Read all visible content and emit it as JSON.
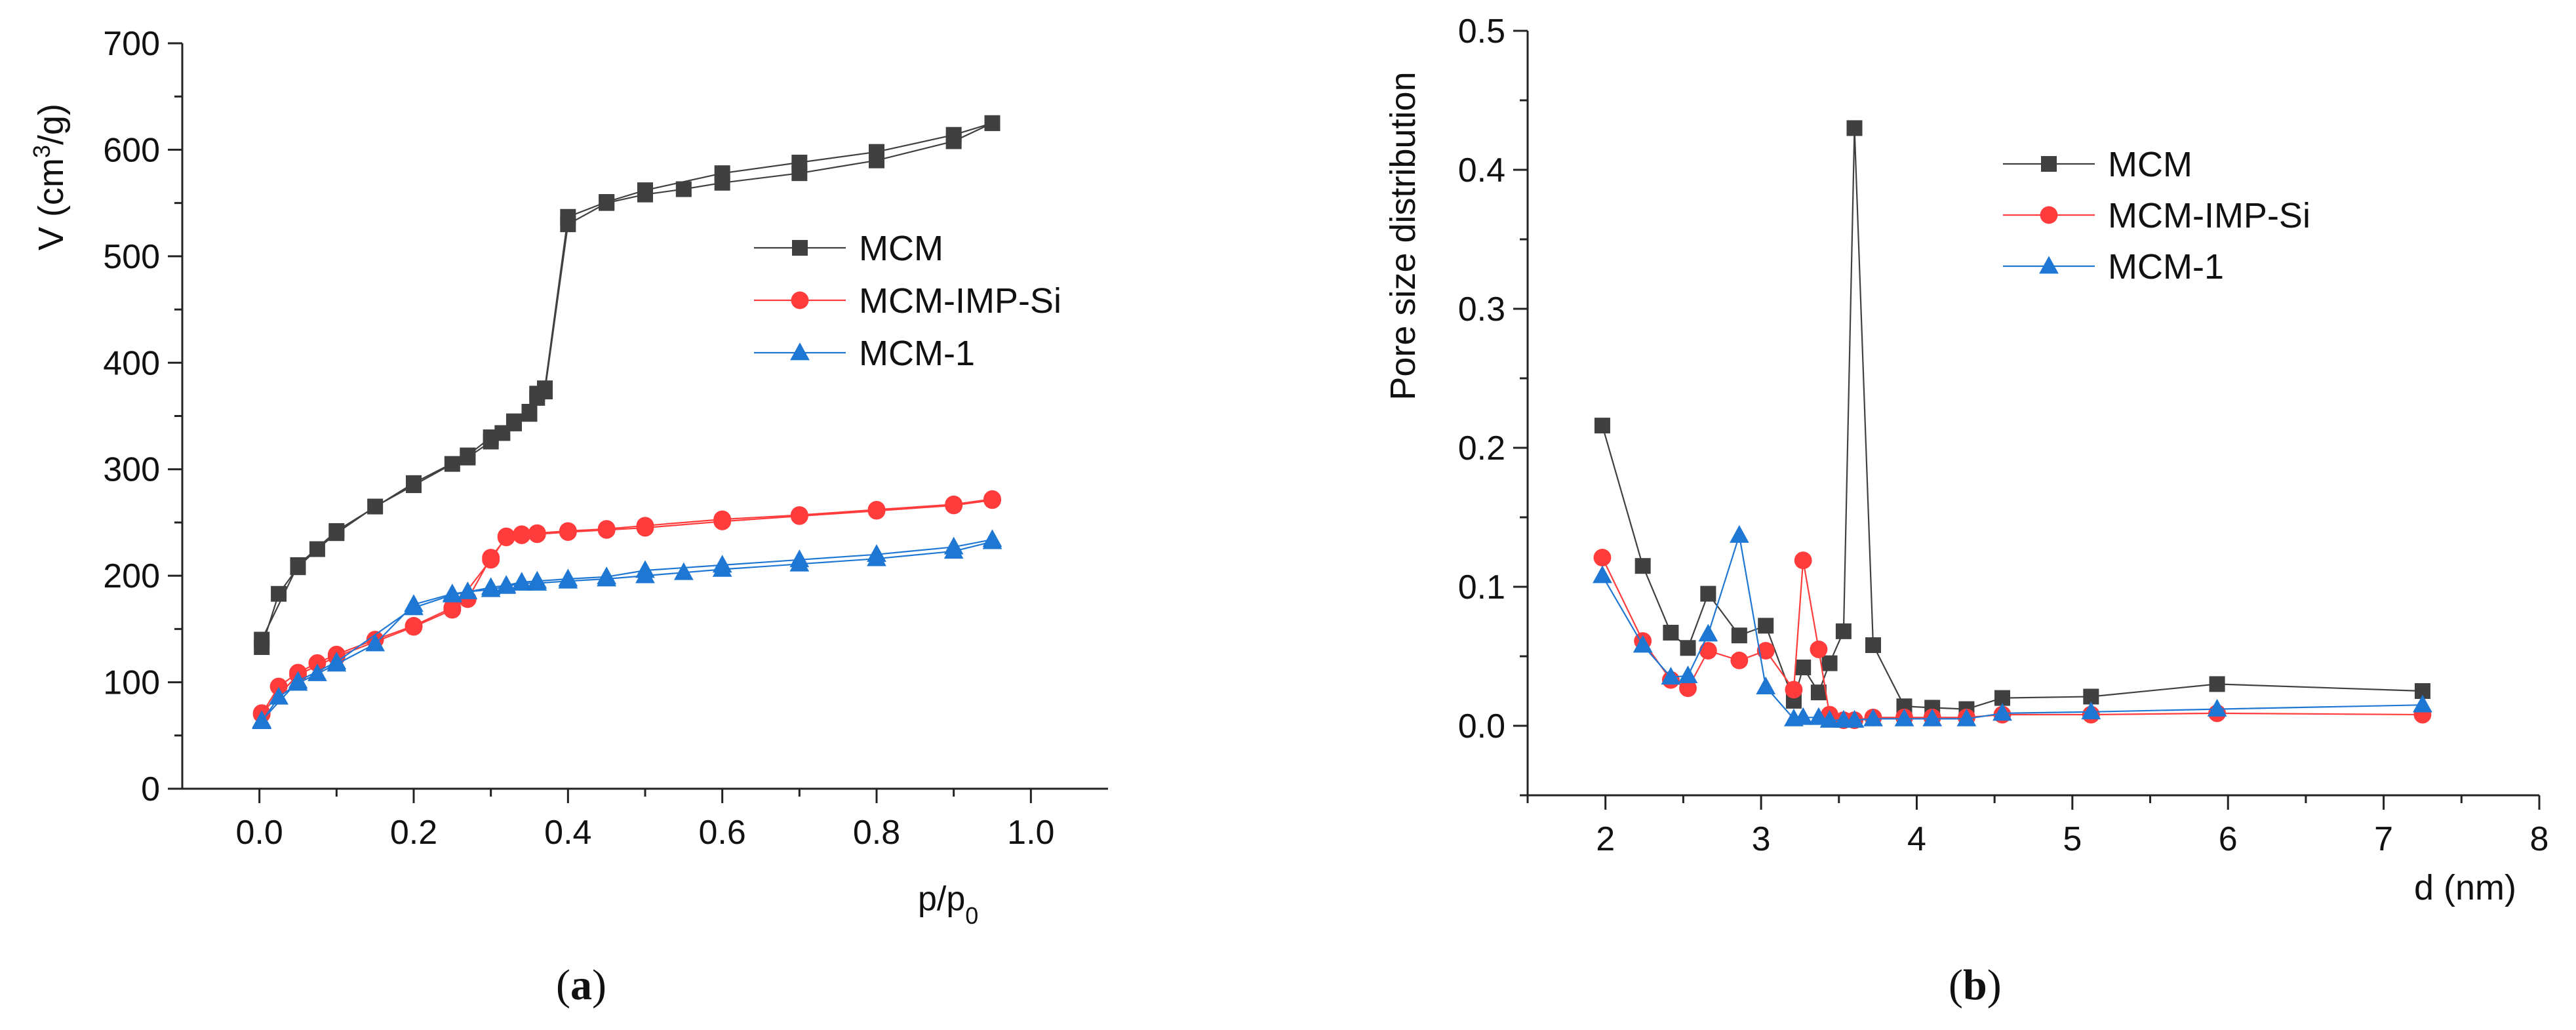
{
  "captions": {
    "a": {
      "open": "(",
      "letter": "a",
      "close": ")"
    },
    "b": {
      "open": "(",
      "letter": "b",
      "close": ")"
    }
  },
  "colors": {
    "MCM": "#404040",
    "MCM-IMP-Si": "#ff3b3b",
    "MCM-1": "#1f77d4"
  },
  "chart_data": [
    {
      "id": "a",
      "type": "line",
      "title": "",
      "xlabel": {
        "main": "p/p",
        "sub": "0"
      },
      "ylabel": {
        "prefix": "V (cm",
        "sup": "3",
        "suffix": "/g)"
      },
      "xlim": [
        -0.1,
        1.1
      ],
      "ylim": [
        0,
        700
      ],
      "xticks": [
        0.0,
        0.2,
        0.4,
        0.6,
        0.8,
        1.0
      ],
      "xtick_labels": [
        "0.0",
        "0.2",
        "0.4",
        "0.6",
        "0.8",
        "1.0"
      ],
      "yticks": [
        0,
        100,
        200,
        300,
        400,
        500,
        600,
        700
      ],
      "ytick_labels": [
        "0",
        "100",
        "200",
        "300",
        "400",
        "500",
        "600",
        "700"
      ],
      "grid": false,
      "legend": "middle-right",
      "series": [
        {
          "name": "MCM",
          "marker": "square",
          "color": "#404040",
          "branches": [
            {
              "x": [
                0.003,
                0.025,
                0.05,
                0.075,
                0.1,
                0.15,
                0.2,
                0.25,
                0.27,
                0.3,
                0.315,
                0.33,
                0.35,
                0.36,
                0.37,
                0.4,
                0.45,
                0.5,
                0.55,
                0.6,
                0.7,
                0.8,
                0.9,
                0.95
              ],
              "y": [
                133,
                183,
                208,
                225,
                240,
                265,
                285,
                305,
                311,
                326,
                334,
                343,
                352,
                367,
                373,
                530,
                550,
                558,
                563,
                569,
                578,
                590,
                608,
                625
              ]
            },
            {
              "x": [
                0.95,
                0.9,
                0.8,
                0.7,
                0.6,
                0.5,
                0.45,
                0.4,
                0.37,
                0.36,
                0.35,
                0.33,
                0.3,
                0.27,
                0.2,
                0.1,
                0.05,
                0.003
              ],
              "y": [
                625,
                614,
                598,
                588,
                578,
                562,
                551,
                537,
                376,
                371,
                354,
                345,
                330,
                313,
                287,
                242,
                210,
                140
              ]
            }
          ]
        },
        {
          "name": "MCM-IMP-Si",
          "marker": "circle",
          "color": "#ff3b3b",
          "branches": [
            {
              "x": [
                0.003,
                0.025,
                0.05,
                0.075,
                0.1,
                0.15,
                0.2,
                0.25,
                0.27,
                0.3,
                0.32,
                0.34,
                0.36,
                0.4,
                0.45,
                0.5,
                0.6,
                0.7,
                0.8,
                0.9,
                0.95
              ],
              "y": [
                70,
                96,
                109,
                118,
                126,
                140,
                153,
                170,
                178,
                217,
                236,
                238,
                239,
                241,
                243,
                245,
                251,
                256,
                261,
                266,
                271
              ]
            },
            {
              "x": [
                0.95,
                0.9,
                0.8,
                0.7,
                0.6,
                0.5,
                0.45,
                0.4,
                0.36,
                0.34,
                0.32,
                0.3,
                0.25,
                0.2,
                0.1,
                0.05,
                0.003
              ],
              "y": [
                272,
                267,
                262,
                257,
                253,
                247,
                244,
                242,
                240,
                239,
                237,
                215,
                168,
                152,
                124,
                107,
                71
              ]
            }
          ]
        },
        {
          "name": "MCM-1",
          "marker": "triangle",
          "color": "#1f77d4",
          "branches": [
            {
              "x": [
                0.003,
                0.025,
                0.05,
                0.075,
                0.1,
                0.15,
                0.2,
                0.25,
                0.27,
                0.3,
                0.32,
                0.34,
                0.36,
                0.4,
                0.45,
                0.5,
                0.55,
                0.6,
                0.7,
                0.8,
                0.9,
                0.95
              ],
              "y": [
                63,
                86,
                99,
                108,
                117,
                136,
                173,
                183,
                185,
                187,
                190,
                193,
                193,
                195,
                197,
                200,
                203,
                206,
                211,
                216,
                223,
                232
              ]
            },
            {
              "x": [
                0.95,
                0.9,
                0.8,
                0.7,
                0.6,
                0.5,
                0.45,
                0.4,
                0.36,
                0.34,
                0.32,
                0.3,
                0.25,
                0.2,
                0.1,
                0.05,
                0.003
              ],
              "y": [
                234,
                227,
                220,
                215,
                210,
                205,
                199,
                197,
                195,
                194,
                191,
                189,
                182,
                170,
                119,
                101,
                64
              ]
            }
          ]
        }
      ]
    },
    {
      "id": "b",
      "type": "line",
      "title": "",
      "xlabel": "d (nm)",
      "ylabel": "Pore size distribution",
      "xlim": [
        1.5,
        8
      ],
      "ylim": [
        -0.05,
        0.5
      ],
      "xticks": [
        2,
        3,
        4,
        5,
        6,
        7,
        8
      ],
      "xtick_labels": [
        "2",
        "3",
        "4",
        "5",
        "6",
        "7",
        "8"
      ],
      "yticks": [
        0.0,
        0.1,
        0.2,
        0.3,
        0.4,
        0.5
      ],
      "ytick_labels": [
        "0.0",
        "0.1",
        "0.2",
        "0.3",
        "0.4",
        "0.5"
      ],
      "grid": false,
      "legend": "top-right",
      "series": [
        {
          "name": "MCM",
          "marker": "square",
          "color": "#404040",
          "x": [
            1.98,
            2.24,
            2.42,
            2.53,
            2.66,
            2.86,
            3.03,
            3.21,
            3.27,
            3.37,
            3.44,
            3.53,
            3.6,
            3.72,
            3.92,
            4.1,
            4.32,
            4.55,
            5.12,
            5.93,
            7.25
          ],
          "y": [
            0.216,
            0.115,
            0.067,
            0.056,
            0.095,
            0.065,
            0.072,
            0.018,
            0.042,
            0.024,
            0.045,
            0.068,
            0.43,
            0.058,
            0.014,
            0.013,
            0.012,
            0.02,
            0.021,
            0.03,
            0.025
          ]
        },
        {
          "name": "MCM-IMP-Si",
          "marker": "circle",
          "color": "#ff3b3b",
          "x": [
            1.98,
            2.24,
            2.42,
            2.53,
            2.66,
            2.86,
            3.03,
            3.21,
            3.27,
            3.37,
            3.44,
            3.53,
            3.6,
            3.72,
            3.92,
            4.1,
            4.32,
            4.55,
            5.12,
            5.93,
            7.25
          ],
          "y": [
            0.121,
            0.061,
            0.033,
            0.027,
            0.054,
            0.047,
            0.054,
            0.026,
            0.119,
            0.055,
            0.008,
            0.004,
            0.004,
            0.006,
            0.006,
            0.006,
            0.006,
            0.008,
            0.008,
            0.009,
            0.008
          ]
        },
        {
          "name": "MCM-1",
          "marker": "triangle",
          "color": "#1f77d4",
          "x": [
            1.98,
            2.24,
            2.42,
            2.53,
            2.66,
            2.86,
            3.03,
            3.21,
            3.27,
            3.37,
            3.44,
            3.53,
            3.6,
            3.72,
            3.92,
            4.1,
            4.32,
            4.55,
            5.12,
            5.93,
            7.25
          ],
          "y": [
            0.108,
            0.058,
            0.035,
            0.036,
            0.066,
            0.137,
            0.028,
            0.005,
            0.006,
            0.006,
            0.004,
            0.004,
            0.004,
            0.005,
            0.005,
            0.005,
            0.005,
            0.009,
            0.01,
            0.012,
            0.015
          ]
        }
      ]
    }
  ]
}
